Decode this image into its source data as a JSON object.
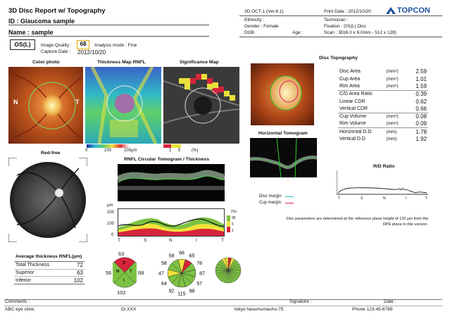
{
  "header": {
    "title": "3D Disc Report w/ Topography",
    "patient_id": "ID : Glaucoma sample",
    "patient_name": "Name : sample",
    "device": "3D OCT-1 (Ver.8.1)",
    "print_date": "Print Date : 2012/10/20",
    "brand": "TOPCON",
    "ethnicity": "Ethnicity :",
    "gender": "Gender : Female",
    "dob": "DOB :",
    "age": "Age :",
    "technician": "Technician :",
    "fixation": "Fixation : OS(L) Disc",
    "scan": "Scan : 3D(6.0 x 6.0mm - 512 x 128)"
  },
  "exam": {
    "eye": "OS(L)",
    "iq_label": "Image Quality :",
    "iq_value": "68",
    "mode": "Analysis mode : Fine",
    "capture_label": "Capture Date :",
    "capture_date": "2012/10/20"
  },
  "panels": {
    "color_photo": "Color photo",
    "thickness_map": "Thickness Map RNFL",
    "significance_map": "Significance Map",
    "red_free": "Red-free",
    "disc_topo": "Disc Topography",
    "horiz_tomo": "Horizontal Tomogram",
    "rd_ratio": "R/D Ratio",
    "rnfl_circ": "RNFL Circular Tomogram / Thickness"
  },
  "photo_labels": {
    "n": "N",
    "t": "T"
  },
  "thick_scale": {
    "t0": "0",
    "t1": "100",
    "t2": "200µm"
  },
  "sig_scale": {
    "t0": "1",
    "t1": "5",
    "t2": "(%)"
  },
  "topography": [
    {
      "label": "Disc Area",
      "unit": "(mm²)",
      "value": "2.59"
    },
    {
      "label": "Cup Area",
      "unit": "(mm²)",
      "value": "1.01"
    },
    {
      "label": "Rim Area",
      "unit": "(mm²)",
      "value": "1.59"
    },
    {
      "label": "C/D Area Ratio",
      "unit": "",
      "value": "0.39"
    },
    {
      "label": "Linear CDR",
      "unit": "",
      "value": "0.62"
    },
    {
      "label": "Vertical CDR",
      "unit": "",
      "value": "0.66"
    },
    {
      "label": "Cup Volume",
      "unit": "(mm³)",
      "value": "0.08"
    },
    {
      "label": "Rim Volume",
      "unit": "(mm³)",
      "value": "0.09"
    },
    {
      "label": "Horizontal D.D",
      "unit": "(mm)",
      "value": "1.78"
    },
    {
      "label": "Vertical D.D",
      "unit": "(mm)",
      "value": "1.92"
    }
  ],
  "rd_axis": [
    "T",
    "S",
    "N",
    "I",
    "T"
  ],
  "margins": {
    "disc": "Disc margin",
    "cup": "Cup margin"
  },
  "note": "Disc parameters are determined at the reference plane height of 120 µm from the RPE plane in this version.",
  "thickness_graph": {
    "unit": "µm",
    "y200": "200",
    "y100": "100",
    "y0": "0",
    "x": [
      "T",
      "S",
      "N",
      "I",
      "T"
    ],
    "pct": "(%)",
    "l95": "95",
    "l5": "5",
    "l1": "1"
  },
  "avg_thickness": {
    "title": "Average thickness RNFL(µm)",
    "rows": [
      {
        "label": "Total Thickness",
        "value": "72"
      },
      {
        "label": "Superior",
        "value": "63"
      },
      {
        "label": "Inferior",
        "value": "102"
      }
    ]
  },
  "quadrant": {
    "top": "63",
    "left": "56",
    "right": "68",
    "bottom": "102",
    "s": "S",
    "n": "N",
    "i": "I",
    "t": "T"
  },
  "clock": {
    "values": [
      "66",
      "65",
      "78",
      "87",
      "57",
      "98",
      "115",
      "92",
      "64",
      "47",
      "58",
      "58"
    ]
  },
  "footer": {
    "comments": "Comments :",
    "signature": "Signature :",
    "date": "Date :",
    "clinic": "ABC eye clinic",
    "doctor": "Dr.XXX",
    "address": "tokyo hasumumacho-75",
    "phone": "Phone 123-45-6789"
  },
  "colors": {
    "green": "#7cc242",
    "yellow": "#f2e33a",
    "red": "#d8243a",
    "brand": "#1b4fa0"
  }
}
